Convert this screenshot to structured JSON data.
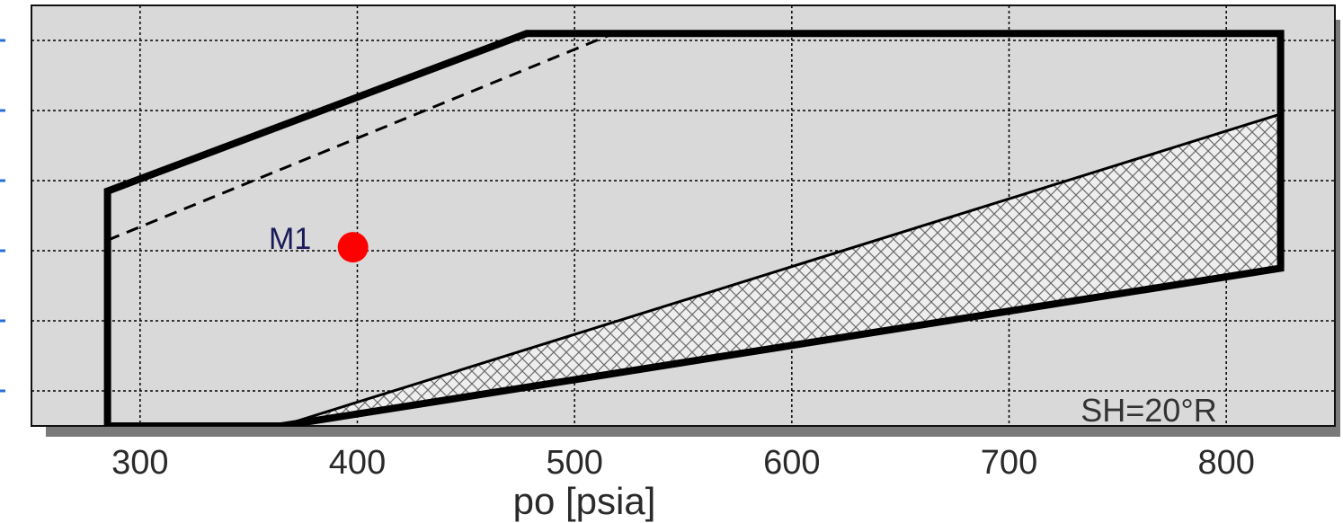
{
  "chart_data": {
    "type": "line",
    "xlabel": "po [psia]",
    "xlim": [
      250,
      850
    ],
    "ylim": [
      0,
      6
    ],
    "x_ticks": [
      300,
      400,
      500,
      600,
      700,
      800
    ],
    "y_gridlines": [
      0.5,
      1.5,
      2.5,
      3.5,
      4.5,
      5.5
    ],
    "grid": true,
    "annotation": "SH=20°R",
    "series": [
      {
        "role": "outer-envelope",
        "style": "solid-thick",
        "points": [
          [
            285,
            0.0
          ],
          [
            285,
            3.35
          ],
          [
            478,
            5.6
          ],
          [
            825,
            5.6
          ],
          [
            825,
            2.25
          ],
          [
            365,
            0.0
          ]
        ]
      },
      {
        "role": "dashed-boundary",
        "style": "dashed",
        "points": [
          [
            285,
            2.65
          ],
          [
            518,
            5.6
          ]
        ]
      },
      {
        "role": "hatched-region",
        "style": "cross-hatch",
        "points": [
          [
            365,
            0.0
          ],
          [
            825,
            4.45
          ],
          [
            825,
            2.25
          ]
        ]
      }
    ],
    "points": [
      {
        "label": "M1",
        "x": 398,
        "y": 2.55,
        "color": "#ff0000"
      }
    ],
    "colors": {
      "plot_bg": "#d9d9d9",
      "line": "#000000",
      "grid": "#000000",
      "shadow": "#7a7a7a",
      "marker": "#ff0000",
      "y_tick_marks": "#2a6fd8"
    }
  }
}
